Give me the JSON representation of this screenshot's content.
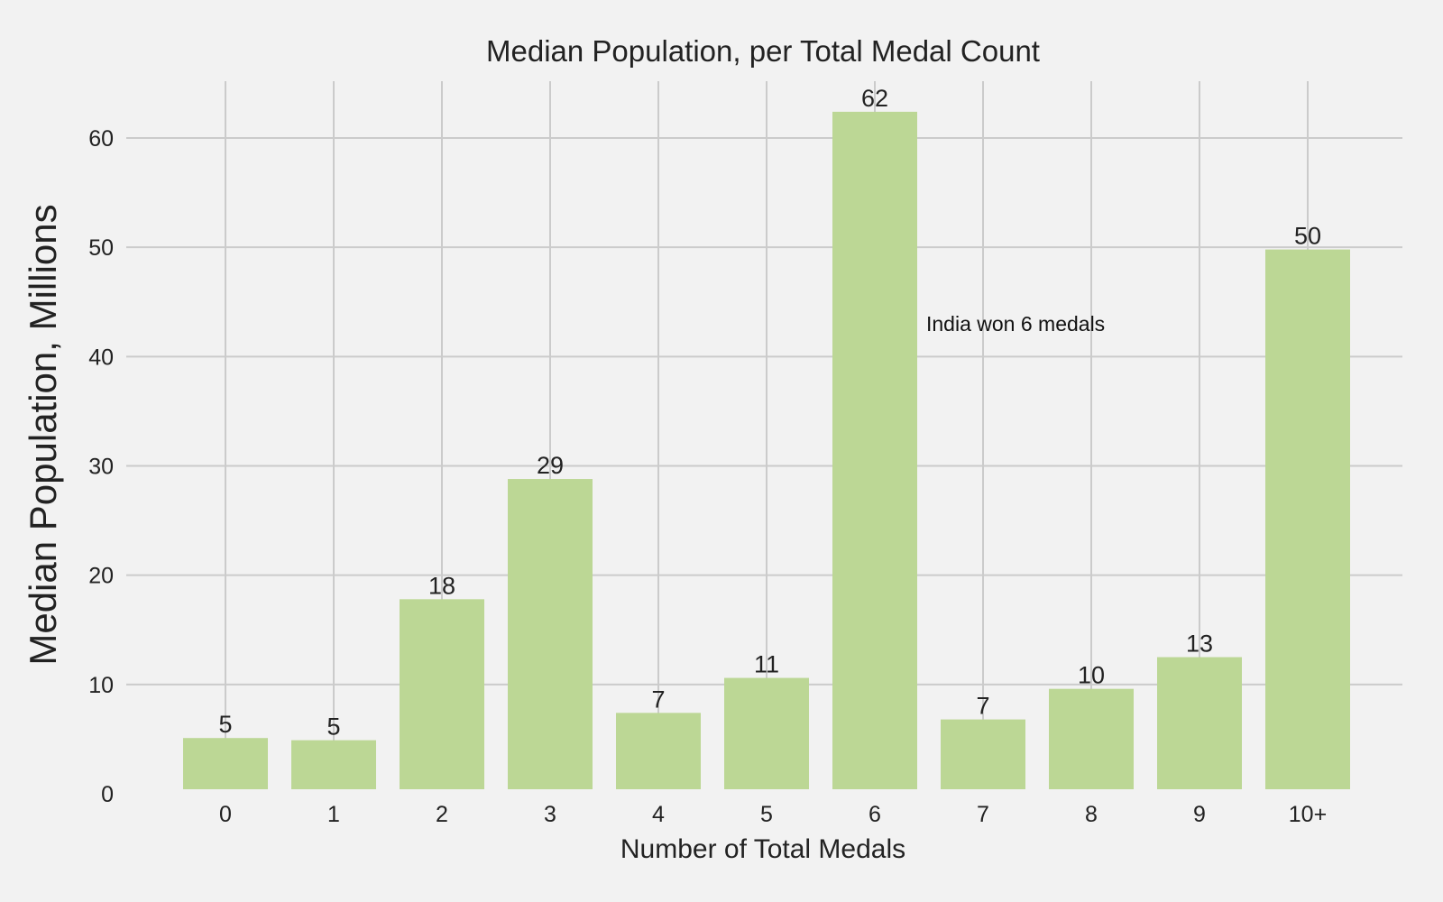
{
  "chart_data": {
    "type": "bar",
    "title": "Median Population, per Total Medal Count",
    "xlabel": "Number of Total Medals",
    "ylabel": "Median Population, Millions",
    "categories": [
      "0",
      "1",
      "2",
      "3",
      "4",
      "5",
      "6",
      "7",
      "8",
      "9",
      "10+"
    ],
    "values": [
      5.1,
      4.9,
      17.8,
      28.8,
      7.4,
      10.6,
      62.4,
      6.8,
      9.6,
      12.5,
      49.8
    ],
    "data_labels": [
      "5",
      "5",
      "18",
      "29",
      "7",
      "11",
      "62",
      "7",
      "10",
      "13",
      "50"
    ],
    "ylim": [
      0,
      65
    ],
    "yticks": [
      "0",
      "10",
      "20",
      "30",
      "40",
      "50",
      "60"
    ],
    "grid": true,
    "bar_color": "#bcd795",
    "background_color": "#f2f2f2",
    "grid_color": "#cbcbcb",
    "annotation": {
      "text": "India won 6 medals",
      "category": "6",
      "value": 43
    }
  }
}
